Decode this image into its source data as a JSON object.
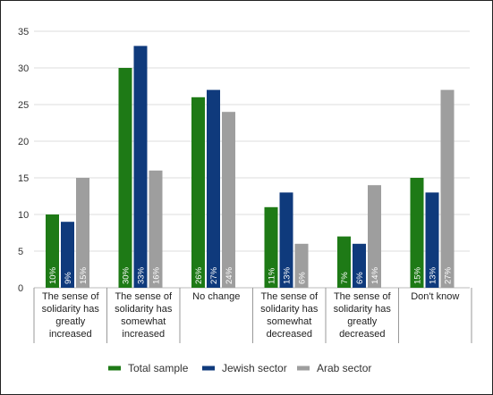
{
  "colors": {
    "total": "#1e7a16",
    "jewish": "#0f3a7c",
    "arab": "#9e9e9e"
  },
  "chart_data": {
    "type": "bar",
    "title": "",
    "xlabel": "",
    "ylabel": "",
    "ylim": [
      0,
      35
    ],
    "yticks": [
      0,
      5,
      10,
      15,
      20,
      25,
      30,
      35
    ],
    "grid": true,
    "legend_position": "bottom",
    "categories": [
      [
        "The sense of",
        "solidarity has",
        "greatly",
        "increased"
      ],
      [
        "The sense of",
        "solidarity has",
        "somewhat",
        "increased"
      ],
      [
        "No change"
      ],
      [
        "The sense of",
        "solidarity has",
        "somewhat",
        "decreased"
      ],
      [
        "The sense of",
        "solidarity has",
        "greatly",
        "decreased"
      ],
      [
        "Don't know"
      ]
    ],
    "series": [
      {
        "name": "Total sample",
        "color": "#1e7a16",
        "values": [
          10,
          30,
          26,
          11,
          7,
          15
        ],
        "labels": [
          "10%",
          "30%",
          "26%",
          "11%",
          "7%",
          "15%"
        ]
      },
      {
        "name": "Jewish sector",
        "color": "#0f3a7c",
        "values": [
          9,
          33,
          27,
          13,
          6,
          13
        ],
        "labels": [
          "9%",
          "33%",
          "27%",
          "13%",
          "6%",
          "13%"
        ]
      },
      {
        "name": "Arab sector",
        "color": "#9e9e9e",
        "values": [
          15,
          16,
          24,
          6,
          14,
          27
        ],
        "labels": [
          "15%",
          "16%",
          "24%",
          "6%",
          "14%",
          "27%"
        ]
      }
    ]
  }
}
